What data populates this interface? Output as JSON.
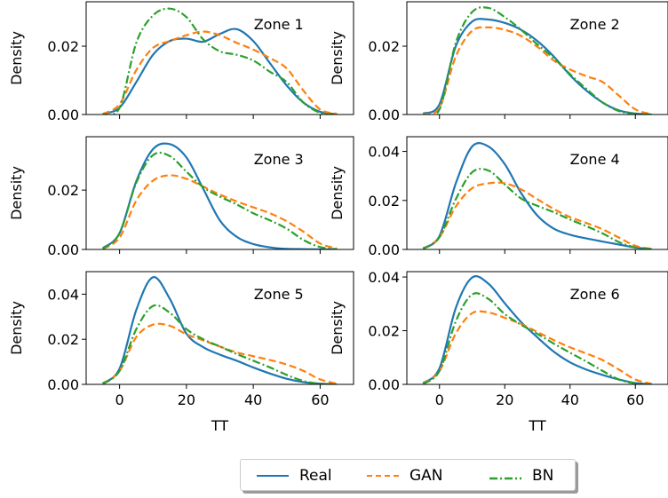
{
  "chart_data": {
    "type": "line",
    "xlabel": "TT",
    "ylabel": "Density",
    "xlim": [
      -10,
      70
    ],
    "xticks": [
      0,
      20,
      40,
      60
    ],
    "legend_position": "bottom-center",
    "series_styles": [
      {
        "name": "Real",
        "color": "#1f77b4",
        "dash": "solid"
      },
      {
        "name": "GAN",
        "color": "#ff7f0e",
        "dash": "dashed"
      },
      {
        "name": "BN",
        "color": "#2ca02c",
        "dash": "dashdot"
      }
    ],
    "panels": [
      {
        "title": "Zone 1",
        "ylim": [
          0,
          0.033
        ],
        "yticks": [
          0.0,
          0.02
        ],
        "ytick_labels": [
          "0.00",
          "0.02"
        ],
        "x": [
          -5,
          0,
          5,
          10,
          15,
          20,
          25,
          30,
          35,
          40,
          45,
          50,
          55,
          60,
          65
        ],
        "series": [
          {
            "name": "Real",
            "values": [
              0.0002,
              0.002,
              0.0095,
              0.0175,
              0.0215,
              0.0222,
              0.0213,
              0.0236,
              0.025,
              0.0215,
              0.015,
              0.0085,
              0.0035,
              0.0008,
              0.0001
            ]
          },
          {
            "name": "GAN",
            "values": [
              0.0002,
              0.003,
              0.013,
              0.0195,
              0.0215,
              0.0232,
              0.0243,
              0.0232,
              0.021,
              0.019,
              0.0165,
              0.0135,
              0.007,
              0.0015,
              0.0002
            ]
          },
          {
            "name": "BN",
            "values": [
              0.0001,
              0.002,
              0.021,
              0.029,
              0.031,
              0.0285,
              0.022,
              0.0185,
              0.0175,
              0.0158,
              0.0125,
              0.0095,
              0.0035,
              0.0005,
              0.0
            ]
          }
        ]
      },
      {
        "title": "Zone 2",
        "ylim": [
          0,
          0.033
        ],
        "yticks": [
          0.0,
          0.02
        ],
        "ytick_labels": [
          "0.00",
          "0.02"
        ],
        "x": [
          -5,
          0,
          5,
          10,
          15,
          20,
          25,
          30,
          35,
          40,
          45,
          50,
          55,
          60,
          65
        ],
        "series": [
          {
            "name": "Real",
            "values": [
              0.0003,
              0.003,
              0.02,
              0.0272,
              0.0278,
              0.0268,
              0.0248,
              0.0215,
              0.017,
              0.0115,
              0.007,
              0.0035,
              0.0012,
              0.0003,
              0.0
            ]
          },
          {
            "name": "GAN",
            "values": [
              0.0002,
              0.002,
              0.017,
              0.0245,
              0.0255,
              0.0248,
              0.023,
              0.0198,
              0.0158,
              0.0132,
              0.0112,
              0.0095,
              0.0055,
              0.0015,
              0.0001
            ]
          },
          {
            "name": "BN",
            "values": [
              0.0001,
              0.0015,
              0.021,
              0.03,
              0.0312,
              0.0285,
              0.0248,
              0.0205,
              0.0165,
              0.0118,
              0.0075,
              0.0035,
              0.001,
              0.0002,
              0.0
            ]
          }
        ]
      },
      {
        "title": "Zone 3",
        "ylim": [
          0,
          0.038
        ],
        "yticks": [
          0.0,
          0.02
        ],
        "ytick_labels": [
          "0.00",
          "0.02"
        ],
        "x": [
          -5,
          0,
          5,
          10,
          15,
          20,
          25,
          30,
          35,
          40,
          45,
          50,
          55,
          60,
          65
        ],
        "series": [
          {
            "name": "Real",
            "values": [
              0.0005,
              0.0055,
              0.023,
              0.0338,
              0.0355,
              0.031,
              0.0205,
              0.0098,
              0.0043,
              0.0018,
              0.0007,
              0.0002,
              0.0001,
              0.0,
              0.0
            ]
          },
          {
            "name": "GAN",
            "values": [
              0.0002,
              0.004,
              0.0165,
              0.0232,
              0.025,
              0.0238,
              0.0212,
              0.0185,
              0.0162,
              0.0142,
              0.0122,
              0.0095,
              0.006,
              0.002,
              0.0003
            ]
          },
          {
            "name": "BN",
            "values": [
              0.0002,
              0.0055,
              0.0225,
              0.0318,
              0.0315,
              0.0262,
              0.021,
              0.0178,
              0.0152,
              0.0122,
              0.0098,
              0.007,
              0.0032,
              0.0008,
              0.0001
            ]
          }
        ]
      },
      {
        "title": "Zone 4",
        "ylim": [
          0,
          0.046
        ],
        "yticks": [
          0.0,
          0.02,
          0.04
        ],
        "ytick_labels": [
          "0.00",
          "0.02",
          "0.04"
        ],
        "x": [
          -5,
          0,
          5,
          10,
          15,
          20,
          25,
          30,
          35,
          40,
          45,
          50,
          55,
          60,
          65
        ],
        "series": [
          {
            "name": "Real",
            "values": [
              0.0005,
              0.0055,
              0.027,
              0.042,
              0.042,
              0.0348,
              0.023,
              0.0138,
              0.0085,
              0.006,
              0.0045,
              0.0032,
              0.002,
              0.0008,
              0.0002
            ]
          },
          {
            "name": "GAN",
            "values": [
              0.0003,
              0.005,
              0.0175,
              0.025,
              0.027,
              0.027,
              0.0245,
              0.0205,
              0.0165,
              0.0132,
              0.0108,
              0.0082,
              0.0048,
              0.0015,
              0.0002
            ]
          },
          {
            "name": "BN",
            "values": [
              0.0002,
              0.005,
              0.0205,
              0.0315,
              0.0322,
              0.0265,
              0.0208,
              0.0178,
              0.0152,
              0.0122,
              0.0095,
              0.0065,
              0.003,
              0.0008,
              0.0001
            ]
          }
        ]
      },
      {
        "title": "Zone 5",
        "ylim": [
          0,
          0.05
        ],
        "yticks": [
          0.0,
          0.02,
          0.04
        ],
        "ytick_labels": [
          "0.00",
          "0.02",
          "0.04"
        ],
        "x": [
          -5,
          0,
          5,
          10,
          15,
          20,
          25,
          30,
          35,
          40,
          45,
          50,
          55,
          60,
          65
        ],
        "series": [
          {
            "name": "Real",
            "values": [
              0.0005,
              0.007,
              0.033,
              0.0475,
              0.038,
              0.0225,
              0.0165,
              0.0132,
              0.0105,
              0.0075,
              0.0048,
              0.0025,
              0.001,
              0.0003,
              0.0
            ]
          },
          {
            "name": "GAN",
            "values": [
              0.0003,
              0.006,
              0.021,
              0.0265,
              0.026,
              0.0222,
              0.0195,
              0.0168,
              0.0142,
              0.0125,
              0.0108,
              0.0088,
              0.006,
              0.0022,
              0.0003
            ]
          },
          {
            "name": "BN",
            "values": [
              0.0002,
              0.006,
              0.0245,
              0.0348,
              0.0318,
              0.0245,
              0.02,
              0.0168,
              0.0135,
              0.0105,
              0.0075,
              0.0042,
              0.0015,
              0.0003,
              0.0
            ]
          }
        ]
      },
      {
        "title": "Zone 6",
        "ylim": [
          0,
          0.042
        ],
        "yticks": [
          0.0,
          0.02,
          0.04
        ],
        "ytick_labels": [
          "0.00",
          "0.02",
          "0.04"
        ],
        "x": [
          -5,
          0,
          5,
          10,
          15,
          20,
          25,
          30,
          35,
          40,
          45,
          50,
          55,
          60,
          65
        ],
        "series": [
          {
            "name": "Real",
            "values": [
              0.0005,
              0.006,
              0.0285,
              0.0398,
              0.0375,
              0.0302,
              0.0232,
              0.0175,
              0.0122,
              0.0082,
              0.0055,
              0.0035,
              0.0018,
              0.0005,
              0.0001
            ]
          },
          {
            "name": "GAN",
            "values": [
              0.0003,
              0.005,
              0.019,
              0.0265,
              0.0268,
              0.0248,
              0.0225,
              0.0195,
              0.0165,
              0.0138,
              0.0115,
              0.009,
              0.0055,
              0.0018,
              0.0002
            ]
          },
          {
            "name": "BN",
            "values": [
              0.0002,
              0.005,
              0.0235,
              0.0335,
              0.0318,
              0.0262,
              0.0222,
              0.0188,
              0.0152,
              0.0118,
              0.0085,
              0.005,
              0.0018,
              0.0004,
              0.0
            ]
          }
        ]
      }
    ]
  },
  "legend": {
    "items": [
      {
        "label": "Real",
        "color": "#1f77b4"
      },
      {
        "label": "GAN",
        "color": "#ff7f0e"
      },
      {
        "label": "BN",
        "color": "#2ca02c"
      }
    ]
  }
}
